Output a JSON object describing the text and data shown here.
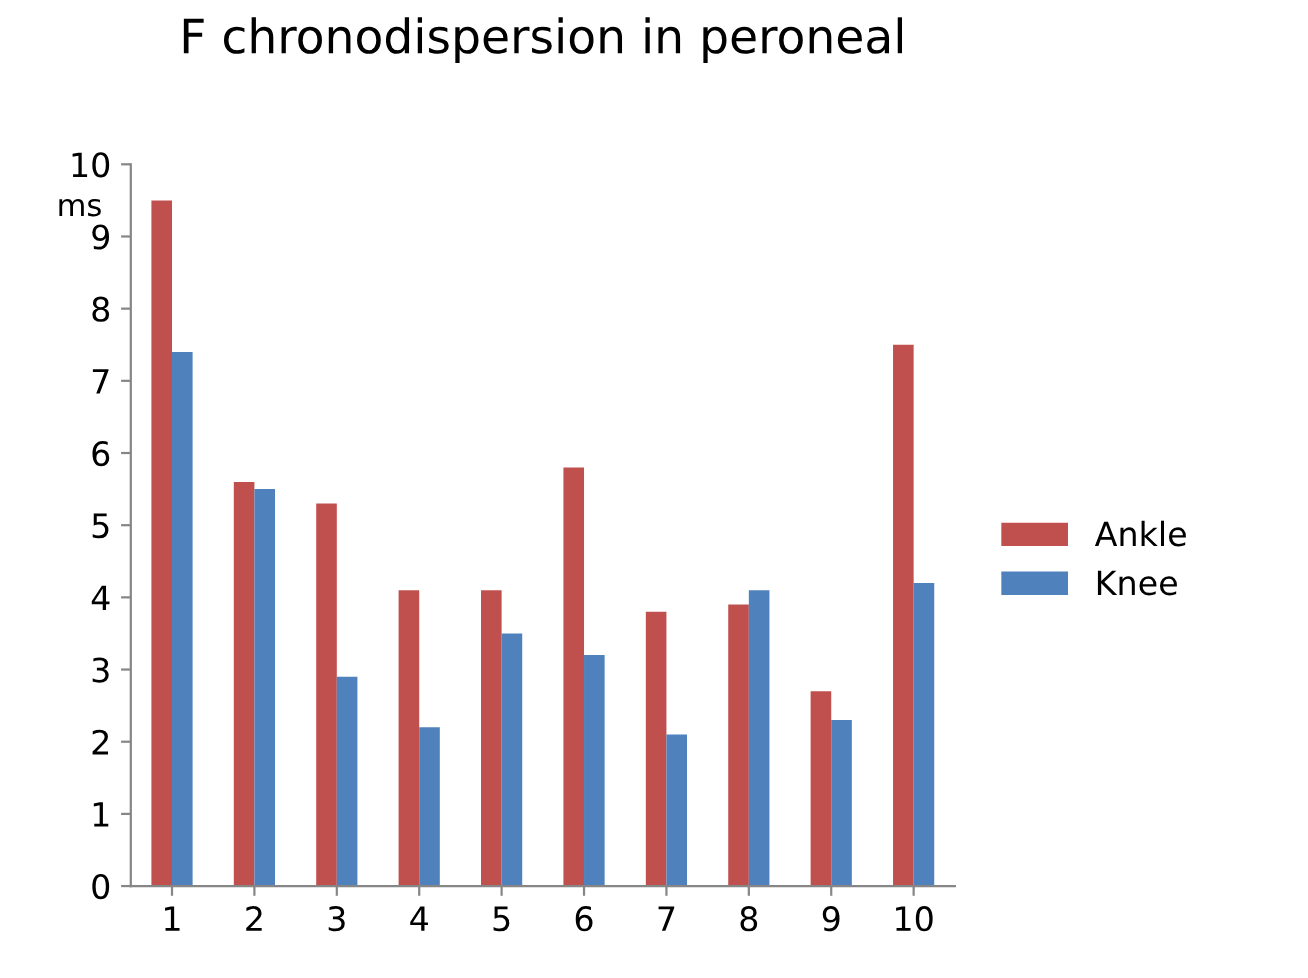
{
  "chart_data": {
    "type": "bar",
    "title": "F chronodispersion in peroneal",
    "ylabel": "ms",
    "categories": [
      "1",
      "2",
      "3",
      "4",
      "5",
      "6",
      "7",
      "8",
      "9",
      "10"
    ],
    "series": [
      {
        "name": "Ankle",
        "color": "#c0504d",
        "values": [
          9.5,
          5.6,
          5.3,
          4.1,
          4.1,
          5.8,
          3.8,
          3.9,
          2.7,
          7.5
        ]
      },
      {
        "name": "Knee",
        "color": "#4f81bd",
        "values": [
          7.4,
          5.5,
          2.9,
          2.2,
          3.5,
          3.2,
          2.1,
          4.1,
          2.3,
          4.2
        ]
      }
    ],
    "ylim": [
      0,
      10
    ],
    "yticks": [
      0,
      1,
      2,
      3,
      4,
      5,
      6,
      7,
      8,
      9,
      10
    ],
    "grid": false,
    "legend": "right"
  }
}
